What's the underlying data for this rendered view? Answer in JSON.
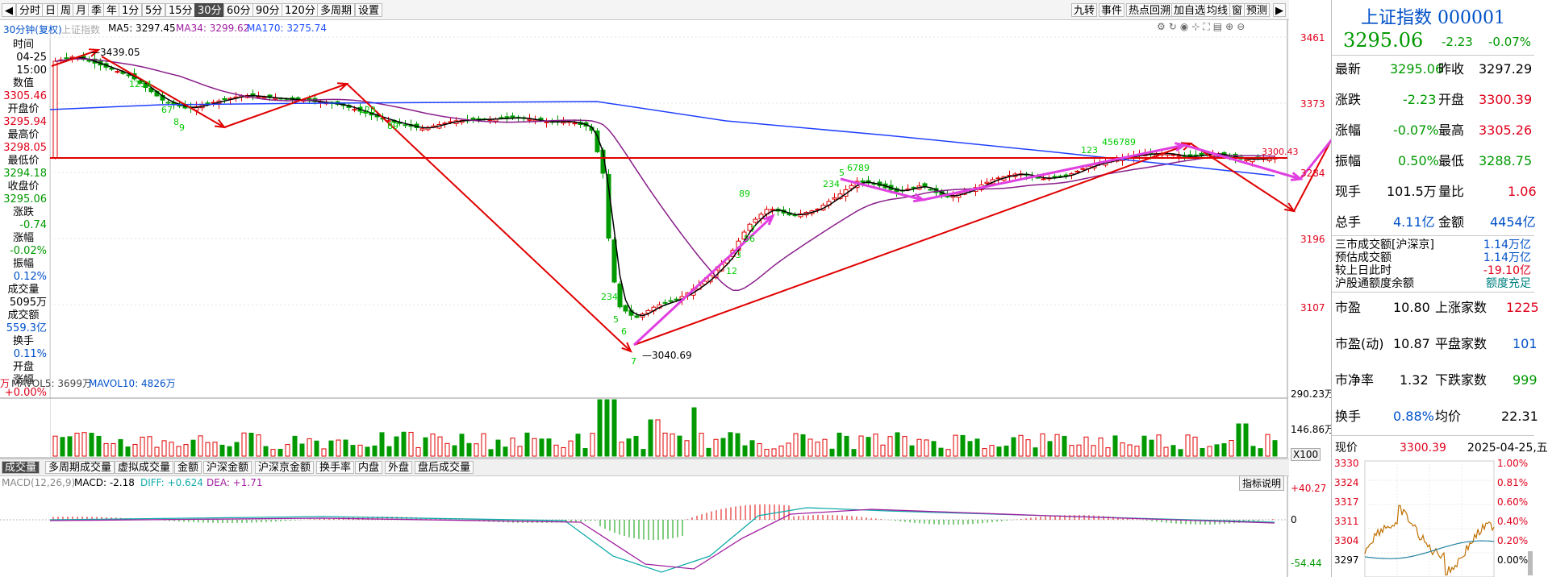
{
  "toolbar": {
    "left_arrow": "◀",
    "periods": [
      "分时",
      "日",
      "周",
      "月",
      "季",
      "年",
      "1分",
      "5分",
      "15分",
      "30分",
      "60分",
      "90分",
      "120分",
      "多周期",
      "设置"
    ],
    "active_period": "30分",
    "right_buttons": [
      "九转",
      "事件",
      "热点回溯",
      "加自选",
      "均线",
      "窗",
      "预测"
    ],
    "right_arrow": "▶"
  },
  "chart_header": {
    "title": "30分钟(复权)",
    "watermark": "上证指数",
    "ma5": "MA5: 3297.45",
    "ma34": "MA34: 3299.62",
    "ma170": "MA170: 3275.74"
  },
  "left_panel": {
    "rows": [
      {
        "label": "时间",
        "value": "04-25"
      },
      {
        "label": "",
        "value": "15:00"
      },
      {
        "label": "数值",
        "value": "3305.46"
      },
      {
        "label": "开盘价",
        "value": "3295.94"
      },
      {
        "label": "最高价",
        "value": "3298.05"
      },
      {
        "label": "最低价",
        "value": "3294.18"
      },
      {
        "label": "收盘价",
        "value": "3295.06"
      },
      {
        "label": "涨跌",
        "value": "-0.74"
      },
      {
        "label": "涨幅",
        "value": "-0.02%"
      },
      {
        "label": "振幅",
        "value": "0.12%"
      },
      {
        "label": "成交量",
        "value": "5095万"
      },
      {
        "label": "成交额",
        "value": "559.3亿"
      },
      {
        "label": "换手",
        "value": "0.11%"
      },
      {
        "label": "开盘",
        "value": ""
      },
      {
        "label": "涨幅",
        "value": "+0.00%"
      }
    ]
  },
  "price_axis": [
    "3461",
    "3373",
    "3284",
    "3196",
    "3107"
  ],
  "annotations": {
    "high": "3439.05",
    "low": "3040.69",
    "last": "3300.43"
  },
  "volume_header": {
    "mavol5": "MAVOL5: 3699万",
    "mavol10": "MAVOL10: 4826万",
    "prefix": "万"
  },
  "volume_axis": [
    "290.23万",
    "146.86万",
    "X100"
  ],
  "indicator_tabs": [
    "成交量",
    "多周期成交量",
    "虚拟成交量",
    "金额",
    "沪深金额",
    "沪深京金额",
    "换手率",
    "内盘",
    "外盘",
    "盘后成交量"
  ],
  "macd_header": {
    "name": "MACD(12,26,9)",
    "macd": "MACD: -2.18",
    "diff": "DIFF: +0.624",
    "dea": "DEA: +1.71",
    "explain": "指标说明"
  },
  "macd_axis": [
    "+40.27",
    "0",
    "-54.44"
  ],
  "right_panel": {
    "name": "上证指数",
    "code": "000001",
    "price": "3295.06",
    "change": "-2.23",
    "pct": "-0.07%",
    "stats": [
      {
        "l1": "最新",
        "v1": "3295.06",
        "l2": "昨收",
        "v2": "3297.29"
      },
      {
        "l1": "涨跌",
        "v1": "-2.23",
        "l2": "开盘",
        "v2": "3300.39"
      },
      {
        "l1": "涨幅",
        "v1": "-0.07%",
        "l2": "最高",
        "v2": "3305.26"
      },
      {
        "l1": "振幅",
        "v1": "0.50%",
        "l2": "最低",
        "v2": "3288.75"
      },
      {
        "l1": "现手",
        "v1": "101.5万",
        "l2": "量比",
        "v2": "1.06"
      },
      {
        "l1": "总手",
        "v1": "4.11亿",
        "l2": "金额",
        "v2": "4454亿"
      }
    ],
    "market": [
      {
        "l": "三市成交额[沪深京]",
        "v": "1.14万亿"
      },
      {
        "l": "预估成交额",
        "v": "1.14万亿"
      },
      {
        "l": "较上日此时",
        "v": "-19.10亿"
      },
      {
        "l": "沪股通额度余额",
        "v": "额度充足"
      }
    ],
    "ratios": [
      {
        "l1": "市盈",
        "v1": "10.80",
        "l2": "上涨家数",
        "v2": "1225"
      },
      {
        "l1": "市盈(动)",
        "v1": "10.87",
        "l2": "平盘家数",
        "v2": "101"
      },
      {
        "l1": "市净率",
        "v1": "1.32",
        "l2": "下跌家数",
        "v2": "999"
      },
      {
        "l1": "换手",
        "v1": "0.88%",
        "l2": "均价",
        "v2": "22.31"
      }
    ],
    "mini": {
      "label": "现价",
      "price": "3300.39",
      "date": "2025-04-25,五",
      "left_axis": [
        "3330",
        "3324",
        "3317",
        "3311",
        "3304",
        "3297"
      ],
      "right_axis": [
        "1.00%",
        "0.81%",
        "0.60%",
        "0.40%",
        "0.20%",
        "0.00%"
      ]
    }
  }
}
